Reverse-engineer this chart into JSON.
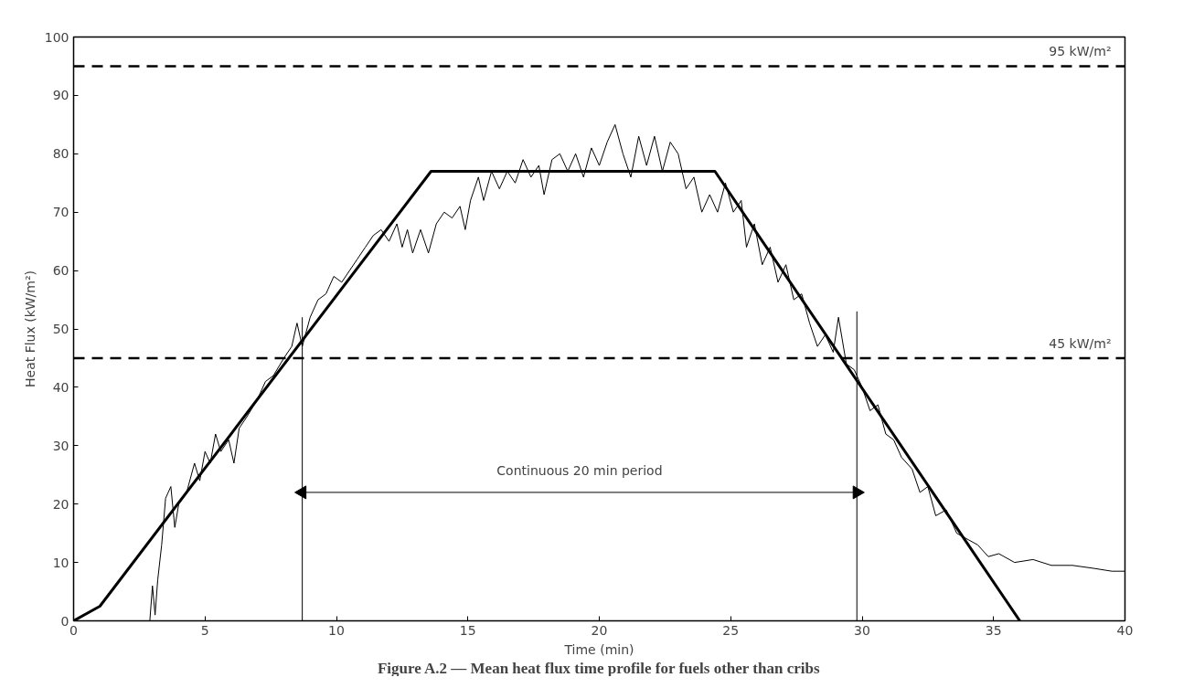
{
  "chart_data": {
    "type": "line",
    "title": "Figure A.2 — Mean heat flux time profile for fuels other than cribs",
    "xlabel": "Time (min)",
    "ylabel": "Heat Flux (kW/m²)",
    "xlim": [
      0,
      40
    ],
    "xticks": [
      0,
      5,
      10,
      15,
      20,
      25,
      30,
      35,
      40
    ],
    "ylim": [
      0,
      100
    ],
    "yticks": [
      0,
      10,
      20,
      30,
      40,
      50,
      60,
      70,
      80,
      90,
      100
    ],
    "grid": false,
    "marker": "none",
    "series": [
      {
        "color": "#000000",
        "x": [
          0,
          1,
          2.9,
          3.0,
          3.1,
          3.2,
          3.35,
          3.5,
          3.7,
          3.85,
          4.0,
          4.3,
          4.6,
          4.8,
          5.0,
          5.2,
          5.4,
          5.6,
          5.9,
          6.1,
          6.3,
          6.6,
          7.0,
          7.3,
          7.6,
          8.0,
          8.3,
          8.5,
          8.7,
          9.0,
          9.3,
          9.6,
          9.9,
          10.2,
          10.5,
          10.8,
          11.1,
          11.4,
          11.7,
          12.0,
          12.3,
          12.5,
          12.7,
          12.9,
          13.2,
          13.5,
          13.8,
          14.1,
          14.4,
          14.7,
          14.9,
          15.1,
          15.4,
          15.6,
          15.9,
          16.2,
          16.5,
          16.8,
          17.1,
          17.4,
          17.7,
          17.9,
          18.2,
          18.5,
          18.8,
          19.1,
          19.4,
          19.7,
          20.0,
          20.3,
          20.6,
          20.9,
          21.2,
          21.5,
          21.8,
          22.1,
          22.4,
          22.7,
          23.0,
          23.3,
          23.6,
          23.9,
          24.2,
          24.5,
          24.8,
          25.1,
          25.4,
          25.6,
          25.9,
          26.2,
          26.5,
          26.8,
          27.1,
          27.4,
          27.7,
          28.0,
          28.3,
          28.6,
          28.9,
          29.1,
          29.4,
          29.7,
          30.0,
          30.3,
          30.6,
          30.9,
          31.2,
          31.5,
          31.9,
          32.2,
          32.5,
          32.8,
          33.2,
          33.6,
          34.0,
          34.4,
          34.8,
          35.2,
          35.8,
          36.5,
          37.2,
          38,
          38.8,
          39.5,
          40
        ],
        "values": [
          0,
          0,
          0,
          6,
          1,
          7,
          13,
          21,
          23,
          16,
          20,
          22,
          27,
          24,
          29,
          27,
          32,
          29,
          31,
          27,
          33,
          35,
          38,
          41,
          42,
          45,
          47,
          51,
          47,
          52,
          55,
          56,
          59,
          58,
          60,
          62,
          64,
          66,
          67,
          65,
          68,
          64,
          67,
          63,
          67,
          63,
          68,
          70,
          69,
          71,
          67,
          72,
          76,
          72,
          77,
          74,
          77,
          75,
          79,
          76,
          78,
          73,
          79,
          80,
          77,
          80,
          76,
          81,
          78,
          82,
          85,
          80,
          76,
          83,
          78,
          83,
          77,
          82,
          80,
          74,
          76,
          70,
          73,
          70,
          75,
          70,
          72,
          64,
          68,
          61,
          64,
          58,
          61,
          55,
          56,
          51,
          47,
          49,
          46,
          52,
          44,
          43,
          40,
          36,
          37,
          32,
          31,
          28,
          26,
          22,
          23,
          18,
          19,
          15,
          14,
          13,
          11,
          11.5,
          10,
          10.5,
          9.5,
          9.5,
          9,
          8.5,
          8.5
        ]
      },
      {
        "color": "#000000",
        "x": [
          0,
          1,
          13.6,
          24.4,
          36
        ],
        "values": [
          0,
          2.5,
          77,
          77,
          0
        ]
      },
      {
        "color": "#000000",
        "x": [
          8.7,
          8.7
        ],
        "values": [
          0,
          52
        ]
      },
      {
        "color": "#000000",
        "x": [
          29.8,
          29.8
        ],
        "values": [
          0,
          53
        ]
      },
      {
        "color": "#000000",
        "x": [
          8.7,
          29.8
        ],
        "values": [
          22,
          22
        ],
        "marker": "triangle"
      }
    ],
    "annotations": [
      "Continuous 20 min period"
    ],
    "ref_lines": [
      {
        "axis": "y",
        "value": 95,
        "label": "95 kW/m²",
        "line_style": "dashed"
      },
      {
        "axis": "y",
        "value": 45,
        "label": "45 kW/m²",
        "line_style": "dashed"
      }
    ]
  }
}
